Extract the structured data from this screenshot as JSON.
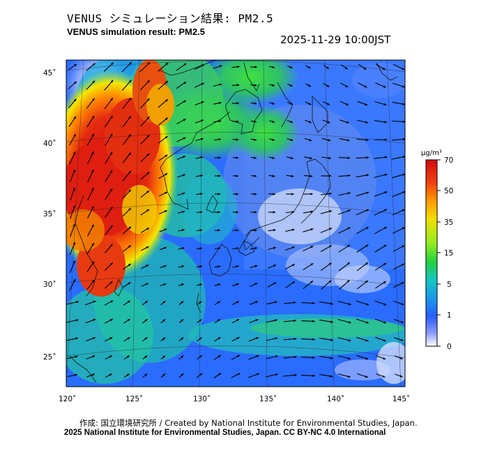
{
  "header": {
    "title_jp": "VENUS シミュレーション結果: PM2.5",
    "title_en": "VENUS simulation result: PM2.5",
    "timestamp": "2025-11-29 10:00JST"
  },
  "map": {
    "lat_labels": [
      "45˚",
      "40˚",
      "35˚",
      "30˚",
      "25˚"
    ],
    "lon_labels": [
      "120˚",
      "125˚",
      "130˚",
      "135˚",
      "140˚",
      "145˚"
    ],
    "wind_vectors": "arrows"
  },
  "colorbar": {
    "unit": "µg/m³",
    "ticks": [
      "70",
      "50",
      "35",
      "15",
      "5",
      "1",
      "0"
    ],
    "colors": [
      "#e01010",
      "#ff6a00",
      "#ffd400",
      "#b0f000",
      "#22d622",
      "#1ab3e0",
      "#2a5fff",
      "#8a9bff",
      "#ffffff"
    ]
  },
  "footer": {
    "credit": "作成: 国立環境研究所 / Created by National Institute for Environmental Studies, Japan.",
    "copyright": "2025 National Institute for Environmental Studies, Japan. CC BY-NC 4.0 International"
  }
}
